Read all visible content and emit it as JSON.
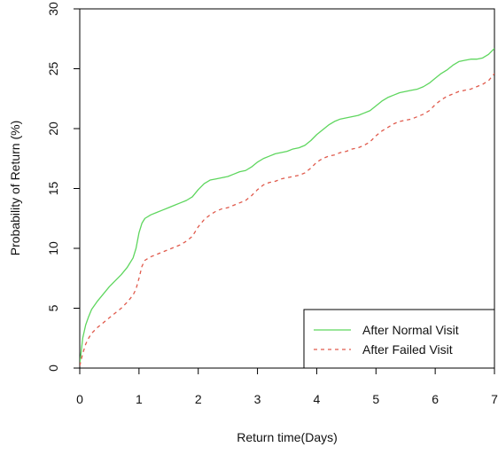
{
  "chart_data": {
    "type": "line",
    "title": "",
    "xlabel": "Return time(Days)",
    "ylabel": "Probability of Return (%)",
    "xlim": [
      0,
      7
    ],
    "ylim": [
      0,
      30
    ],
    "x_ticks": [
      0,
      1,
      2,
      3,
      4,
      5,
      6,
      7
    ],
    "y_ticks": [
      0,
      5,
      10,
      15,
      20,
      25,
      30
    ],
    "grid": false,
    "legend_position": "bottom-right",
    "series": [
      {
        "name": "After Normal Visit",
        "color": "#5ed65e",
        "line_style": "solid",
        "x": [
          0,
          0.05,
          0.1,
          0.15,
          0.2,
          0.3,
          0.4,
          0.5,
          0.6,
          0.7,
          0.8,
          0.9,
          0.95,
          1.0,
          1.05,
          1.1,
          1.2,
          1.3,
          1.4,
          1.5,
          1.6,
          1.7,
          1.8,
          1.9,
          2.0,
          2.1,
          2.2,
          2.3,
          2.4,
          2.5,
          2.6,
          2.7,
          2.8,
          2.9,
          3.0,
          3.1,
          3.2,
          3.3,
          3.4,
          3.5,
          3.6,
          3.7,
          3.8,
          3.9,
          4.0,
          4.1,
          4.2,
          4.3,
          4.4,
          4.5,
          4.6,
          4.7,
          4.8,
          4.9,
          5.0,
          5.1,
          5.2,
          5.3,
          5.4,
          5.5,
          5.6,
          5.7,
          5.8,
          5.9,
          6.0,
          6.1,
          6.2,
          6.3,
          6.4,
          6.5,
          6.6,
          6.7,
          6.8,
          6.9,
          7.0
        ],
        "values": [
          0.3,
          2.5,
          3.6,
          4.3,
          4.9,
          5.6,
          6.2,
          6.8,
          7.3,
          7.8,
          8.4,
          9.2,
          10.0,
          11.3,
          12.1,
          12.5,
          12.8,
          13.0,
          13.2,
          13.4,
          13.6,
          13.8,
          14.0,
          14.3,
          14.9,
          15.4,
          15.7,
          15.8,
          15.9,
          16.0,
          16.2,
          16.4,
          16.5,
          16.8,
          17.2,
          17.5,
          17.7,
          17.9,
          18.0,
          18.1,
          18.3,
          18.4,
          18.6,
          19.0,
          19.5,
          19.9,
          20.3,
          20.6,
          20.8,
          20.9,
          21.0,
          21.1,
          21.3,
          21.5,
          21.9,
          22.3,
          22.6,
          22.8,
          23.0,
          23.1,
          23.2,
          23.3,
          23.5,
          23.8,
          24.2,
          24.6,
          24.9,
          25.3,
          25.6,
          25.7,
          25.8,
          25.8,
          25.9,
          26.2,
          26.7
        ]
      },
      {
        "name": "After Failed Visit",
        "color": "#e05a4c",
        "line_style": "dashed",
        "x": [
          0,
          0.05,
          0.1,
          0.15,
          0.2,
          0.3,
          0.4,
          0.5,
          0.6,
          0.7,
          0.8,
          0.9,
          0.95,
          1.0,
          1.05,
          1.1,
          1.2,
          1.3,
          1.4,
          1.5,
          1.6,
          1.7,
          1.8,
          1.9,
          2.0,
          2.1,
          2.2,
          2.3,
          2.4,
          2.5,
          2.6,
          2.7,
          2.8,
          2.9,
          3.0,
          3.1,
          3.2,
          3.3,
          3.4,
          3.5,
          3.6,
          3.7,
          3.8,
          3.9,
          4.0,
          4.1,
          4.2,
          4.3,
          4.4,
          4.5,
          4.6,
          4.7,
          4.8,
          4.9,
          5.0,
          5.1,
          5.2,
          5.3,
          5.4,
          5.5,
          5.6,
          5.7,
          5.8,
          5.9,
          6.0,
          6.1,
          6.2,
          6.3,
          6.4,
          6.5,
          6.6,
          6.7,
          6.8,
          6.9,
          7.0
        ],
        "values": [
          0.2,
          1.2,
          2.0,
          2.5,
          2.9,
          3.4,
          3.8,
          4.2,
          4.6,
          5.0,
          5.5,
          6.1,
          6.6,
          7.5,
          8.5,
          9.0,
          9.3,
          9.5,
          9.7,
          9.9,
          10.1,
          10.3,
          10.6,
          11.0,
          11.8,
          12.4,
          12.8,
          13.1,
          13.3,
          13.4,
          13.6,
          13.8,
          14.0,
          14.4,
          14.9,
          15.3,
          15.5,
          15.6,
          15.8,
          15.9,
          16.0,
          16.1,
          16.3,
          16.7,
          17.2,
          17.5,
          17.7,
          17.8,
          18.0,
          18.1,
          18.3,
          18.4,
          18.6,
          18.9,
          19.4,
          19.8,
          20.1,
          20.4,
          20.6,
          20.7,
          20.8,
          21.0,
          21.2,
          21.5,
          22.0,
          22.4,
          22.7,
          22.9,
          23.1,
          23.2,
          23.3,
          23.5,
          23.7,
          24.0,
          24.6
        ]
      }
    ]
  }
}
